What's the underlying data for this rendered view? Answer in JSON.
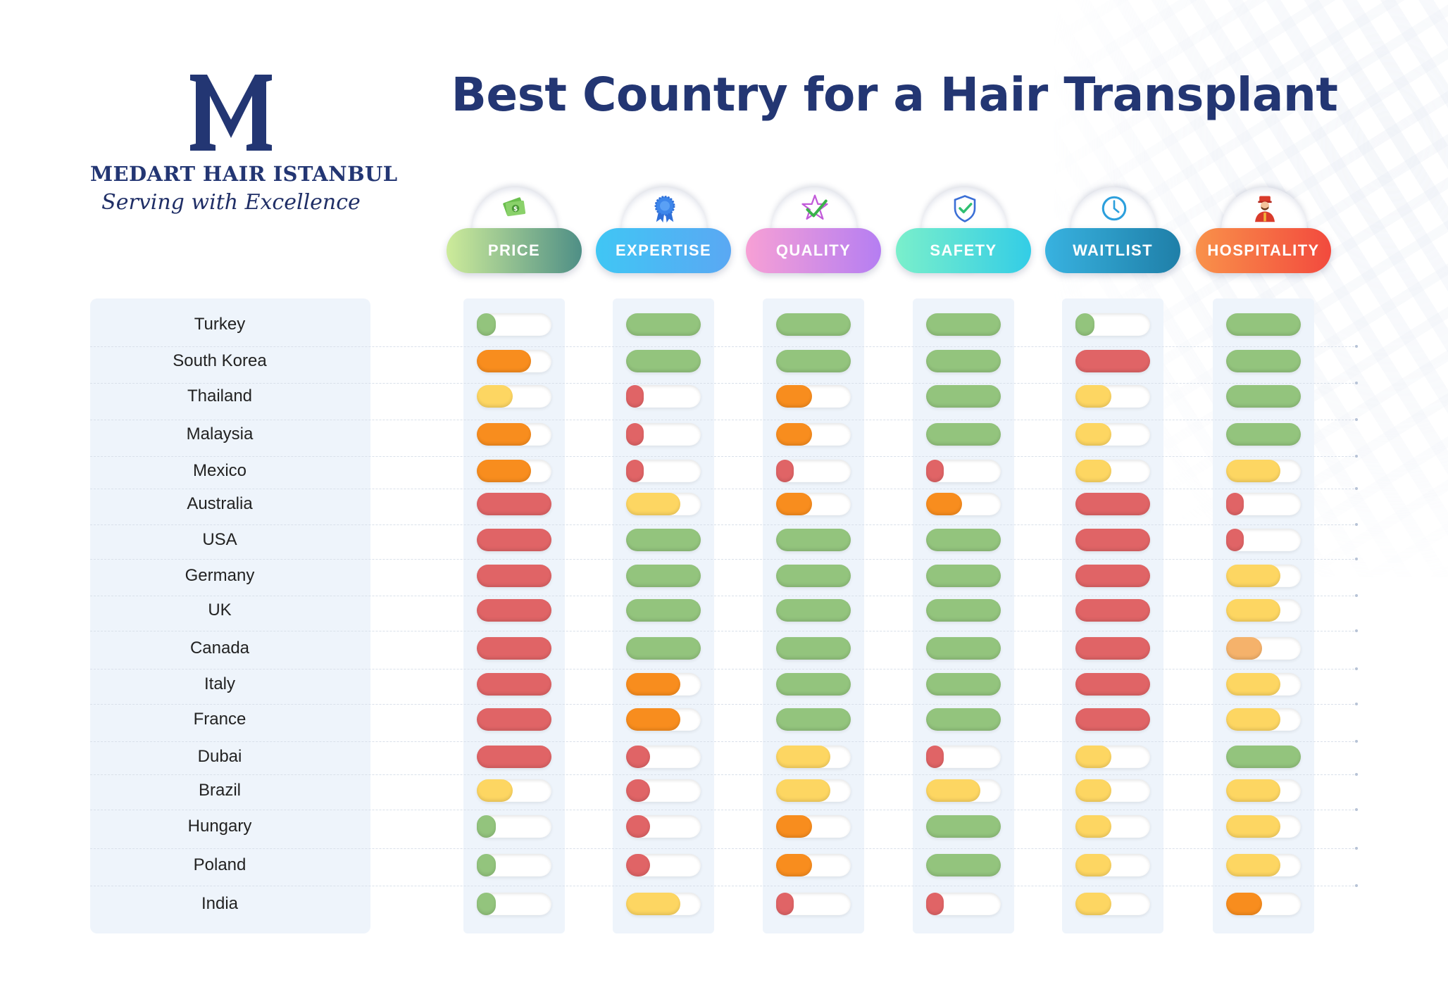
{
  "brand": {
    "name": "MEDART HAIR ISTANBUL",
    "tagline": "Serving with Excellence"
  },
  "colors": {
    "navy": "#233673",
    "green": "#93c47d",
    "orange": "#f88d1e",
    "yellow": "#fdd662",
    "red": "#e06466",
    "light_orange": "#f5b26b"
  },
  "chart_data": {
    "type": "table",
    "title": "Best Country for a Hair Transplant",
    "categories": [
      {
        "label": "PRICE",
        "icon": "money-icon",
        "gradient": [
          "#cdeb9a",
          "#4f8f86"
        ]
      },
      {
        "label": "EXPERTISE",
        "icon": "rosette-icon",
        "gradient": [
          "#40c6f4",
          "#5aa8f3"
        ]
      },
      {
        "label": "QUALITY",
        "icon": "star-check-icon",
        "gradient": [
          "#f7a0d5",
          "#b57ef2"
        ]
      },
      {
        "label": "SAFETY",
        "icon": "shield-check-icon",
        "gradient": [
          "#7aefcb",
          "#33cde6"
        ]
      },
      {
        "label": "WAITLIST",
        "icon": "clock-icon",
        "gradient": [
          "#38b2e0",
          "#1f7fa8"
        ]
      },
      {
        "label": "HOSPITALITY",
        "icon": "bellhop-icon",
        "gradient": [
          "#f9914a",
          "#f24a3e"
        ]
      }
    ],
    "countries": [
      "Turkey",
      "South Korea",
      "Thailand",
      "Malaysia",
      "Mexico",
      "Australia",
      "USA",
      "Germany",
      "UK",
      "Canada",
      "Italy",
      "France",
      "Dubai",
      "Brazil",
      "Hungary",
      "Poland",
      "India"
    ],
    "ratings": [
      [
        {
          "level": 0.25,
          "color": "green"
        },
        {
          "level": 1.0,
          "color": "green"
        },
        {
          "level": 1.0,
          "color": "green"
        },
        {
          "level": 1.0,
          "color": "green"
        },
        {
          "level": 0.25,
          "color": "green"
        },
        {
          "level": 1.0,
          "color": "green"
        }
      ],
      [
        {
          "level": 0.73,
          "color": "orange"
        },
        {
          "level": 1.0,
          "color": "green"
        },
        {
          "level": 1.0,
          "color": "green"
        },
        {
          "level": 1.0,
          "color": "green"
        },
        {
          "level": 1.0,
          "color": "red"
        },
        {
          "level": 1.0,
          "color": "green"
        }
      ],
      [
        {
          "level": 0.48,
          "color": "yellow"
        },
        {
          "level": 0.24,
          "color": "red"
        },
        {
          "level": 0.48,
          "color": "orange"
        },
        {
          "level": 1.0,
          "color": "green"
        },
        {
          "level": 0.48,
          "color": "yellow"
        },
        {
          "level": 1.0,
          "color": "green"
        }
      ],
      [
        {
          "level": 0.73,
          "color": "orange"
        },
        {
          "level": 0.24,
          "color": "red"
        },
        {
          "level": 0.48,
          "color": "orange"
        },
        {
          "level": 1.0,
          "color": "green"
        },
        {
          "level": 0.48,
          "color": "yellow"
        },
        {
          "level": 1.0,
          "color": "green"
        }
      ],
      [
        {
          "level": 0.73,
          "color": "orange"
        },
        {
          "level": 0.24,
          "color": "red"
        },
        {
          "level": 0.24,
          "color": "red"
        },
        {
          "level": 0.24,
          "color": "red"
        },
        {
          "level": 0.48,
          "color": "yellow"
        },
        {
          "level": 0.73,
          "color": "yellow"
        }
      ],
      [
        {
          "level": 1.0,
          "color": "red"
        },
        {
          "level": 0.73,
          "color": "yellow"
        },
        {
          "level": 0.48,
          "color": "orange"
        },
        {
          "level": 0.48,
          "color": "orange"
        },
        {
          "level": 1.0,
          "color": "red"
        },
        {
          "level": 0.24,
          "color": "red"
        }
      ],
      [
        {
          "level": 1.0,
          "color": "red"
        },
        {
          "level": 1.0,
          "color": "green"
        },
        {
          "level": 1.0,
          "color": "green"
        },
        {
          "level": 1.0,
          "color": "green"
        },
        {
          "level": 1.0,
          "color": "red"
        },
        {
          "level": 0.24,
          "color": "red"
        }
      ],
      [
        {
          "level": 1.0,
          "color": "red"
        },
        {
          "level": 1.0,
          "color": "green"
        },
        {
          "level": 1.0,
          "color": "green"
        },
        {
          "level": 1.0,
          "color": "green"
        },
        {
          "level": 1.0,
          "color": "red"
        },
        {
          "level": 0.73,
          "color": "yellow"
        }
      ],
      [
        {
          "level": 1.0,
          "color": "red"
        },
        {
          "level": 1.0,
          "color": "green"
        },
        {
          "level": 1.0,
          "color": "green"
        },
        {
          "level": 1.0,
          "color": "green"
        },
        {
          "level": 1.0,
          "color": "red"
        },
        {
          "level": 0.73,
          "color": "yellow"
        }
      ],
      [
        {
          "level": 1.0,
          "color": "red"
        },
        {
          "level": 1.0,
          "color": "green"
        },
        {
          "level": 1.0,
          "color": "green"
        },
        {
          "level": 1.0,
          "color": "green"
        },
        {
          "level": 1.0,
          "color": "red"
        },
        {
          "level": 0.48,
          "color": "light_orange"
        }
      ],
      [
        {
          "level": 1.0,
          "color": "red"
        },
        {
          "level": 0.73,
          "color": "orange"
        },
        {
          "level": 1.0,
          "color": "green"
        },
        {
          "level": 1.0,
          "color": "green"
        },
        {
          "level": 1.0,
          "color": "red"
        },
        {
          "level": 0.73,
          "color": "yellow"
        }
      ],
      [
        {
          "level": 1.0,
          "color": "red"
        },
        {
          "level": 0.73,
          "color": "orange"
        },
        {
          "level": 1.0,
          "color": "green"
        },
        {
          "level": 1.0,
          "color": "green"
        },
        {
          "level": 1.0,
          "color": "red"
        },
        {
          "level": 0.73,
          "color": "yellow"
        }
      ],
      [
        {
          "level": 1.0,
          "color": "red"
        },
        {
          "level": 0.32,
          "color": "red"
        },
        {
          "level": 0.73,
          "color": "yellow"
        },
        {
          "level": 0.24,
          "color": "red"
        },
        {
          "level": 0.48,
          "color": "yellow"
        },
        {
          "level": 1.0,
          "color": "green"
        }
      ],
      [
        {
          "level": 0.48,
          "color": "yellow"
        },
        {
          "level": 0.32,
          "color": "red"
        },
        {
          "level": 0.73,
          "color": "yellow"
        },
        {
          "level": 0.73,
          "color": "yellow"
        },
        {
          "level": 0.48,
          "color": "yellow"
        },
        {
          "level": 0.73,
          "color": "yellow"
        }
      ],
      [
        {
          "level": 0.25,
          "color": "green"
        },
        {
          "level": 0.32,
          "color": "red"
        },
        {
          "level": 0.48,
          "color": "orange"
        },
        {
          "level": 1.0,
          "color": "green"
        },
        {
          "level": 0.48,
          "color": "yellow"
        },
        {
          "level": 0.73,
          "color": "yellow"
        }
      ],
      [
        {
          "level": 0.25,
          "color": "green"
        },
        {
          "level": 0.32,
          "color": "red"
        },
        {
          "level": 0.48,
          "color": "orange"
        },
        {
          "level": 1.0,
          "color": "green"
        },
        {
          "level": 0.48,
          "color": "yellow"
        },
        {
          "level": 0.73,
          "color": "yellow"
        }
      ],
      [
        {
          "level": 0.25,
          "color": "green"
        },
        {
          "level": 0.73,
          "color": "yellow"
        },
        {
          "level": 0.24,
          "color": "red"
        },
        {
          "level": 0.24,
          "color": "red"
        },
        {
          "level": 0.48,
          "color": "yellow"
        },
        {
          "level": 0.48,
          "color": "orange"
        }
      ]
    ]
  }
}
